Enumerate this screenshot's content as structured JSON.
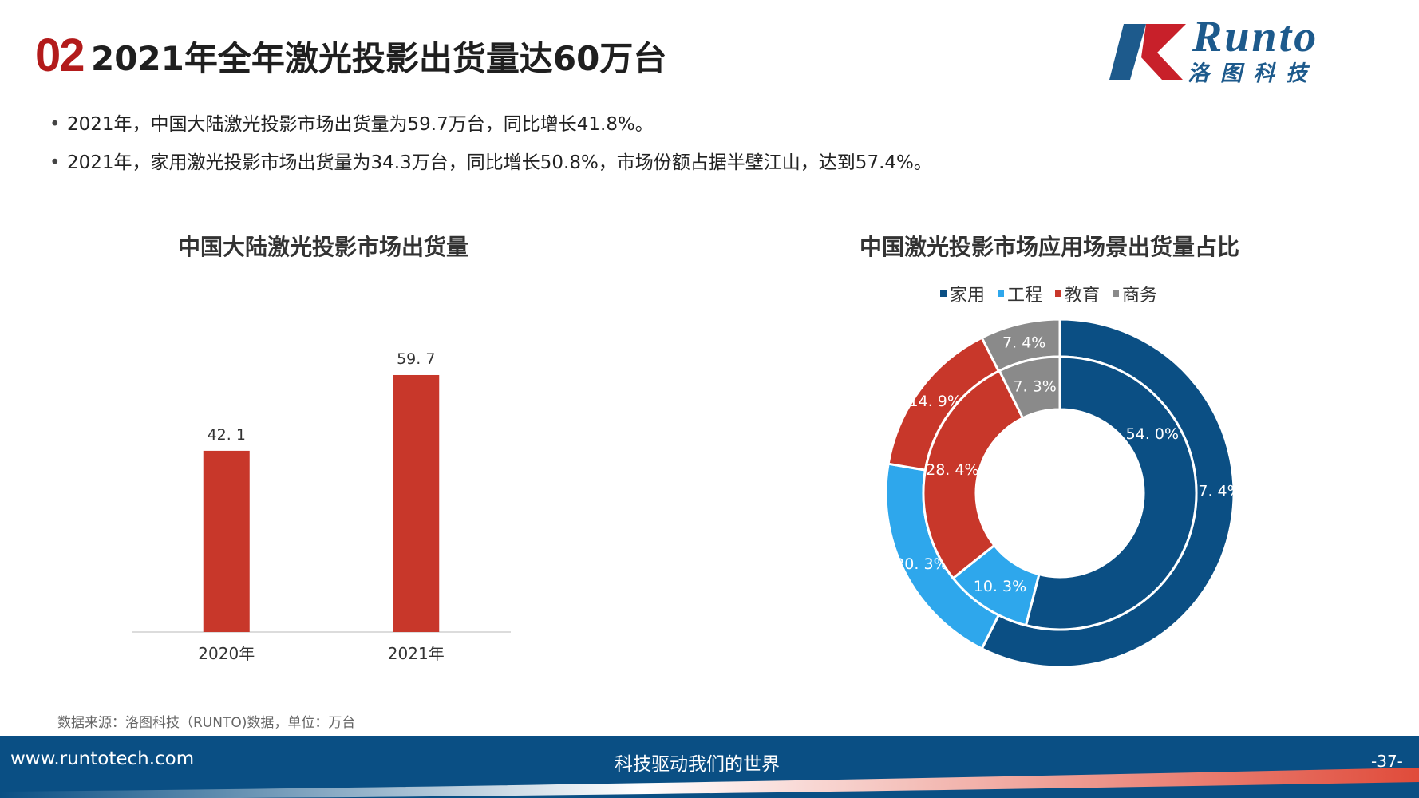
{
  "header": {
    "section_number": "02",
    "title": "2021年全年激光投影出货量达60万台"
  },
  "logo": {
    "name": "Runto",
    "chinese_name": "洛图科技",
    "colors": {
      "blue": "#1d5a8c",
      "red": "#c8202a"
    }
  },
  "bullets": [
    "2021年，中国大陆激光投影市场出货量为59.7万台，同比增长41.8%。",
    "2021年，家用激光投影市场出货量为34.3万台，同比增长50.8%，市场份额占据半壁江山，达到57.4%。"
  ],
  "bullet_marker": "•",
  "chart_data": [
    {
      "type": "bar",
      "title": "中国大陆激光投影市场出货量",
      "categories": [
        "2020年",
        "2021年"
      ],
      "values": [
        42.1,
        59.7
      ],
      "value_labels": [
        "42. 1",
        "59. 7"
      ],
      "color": "#c8372a",
      "ylim": [
        0,
        66
      ]
    },
    {
      "type": "pie",
      "subtype": "double-donut",
      "title": "中国激光投影市场应用场景出货量占比",
      "categories": [
        "家用",
        "工程",
        "教育",
        "商务"
      ],
      "colors": [
        "#0b4f84",
        "#2ea7ec",
        "#c8372a",
        "#8a8a8a"
      ],
      "series": [
        {
          "values": [
            57.4,
            20.3,
            14.9,
            7.4
          ],
          "labels": [
            "57. 4%",
            "20. 3%",
            "14. 9%",
            "7. 4%"
          ]
        },
        {
          "values": [
            54.0,
            10.3,
            28.4,
            7.3
          ],
          "labels": [
            "54. 0%",
            "10. 3%",
            "28. 4%",
            "7. 3%"
          ]
        }
      ],
      "legend_position": "top"
    }
  ],
  "source_note": "数据来源：洛图科技（RUNTO)数据，单位：万台",
  "footer": {
    "url": "www.runtotech.com",
    "slogan": "科技驱动我们的世界",
    "page_number": "-37-",
    "color": "#0a4f84"
  }
}
